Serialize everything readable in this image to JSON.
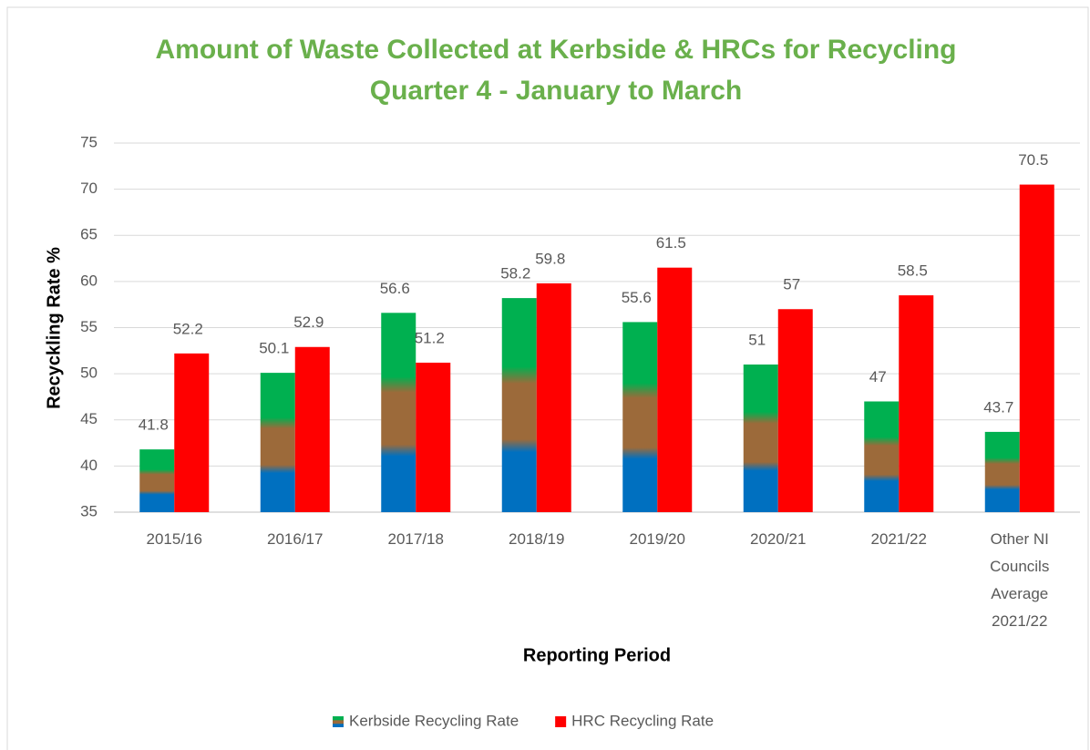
{
  "chart_data": {
    "type": "bar",
    "title": "Amount of Waste Collected at Kerbside & HRCs for Recycling",
    "subtitle": "Quarter 4 - January to March",
    "x_label": "Reporting Period",
    "y_label": "Recyckling Rate %",
    "categories": [
      "2015/16",
      "2016/17",
      "2017/18",
      "2018/19",
      "2019/20",
      "2020/21",
      "2021/22",
      "Other NI Councils Average 2021/22"
    ],
    "series": [
      {
        "name": "Kerbside Recycling Rate",
        "color": "#00b050",
        "values": [
          41.8,
          50.1,
          56.6,
          58.2,
          55.6,
          51,
          47,
          43.7
        ]
      },
      {
        "name": "HRC Recycling Rate",
        "color": "#ff0000",
        "values": [
          52.2,
          52.9,
          51.2,
          59.8,
          61.5,
          57,
          58.5,
          70.5
        ]
      }
    ],
    "ylim": [
      35,
      75
    ],
    "yticks": [
      35,
      40,
      45,
      50,
      55,
      60,
      65,
      70,
      75
    ],
    "grid": true,
    "legend": "bottom"
  }
}
